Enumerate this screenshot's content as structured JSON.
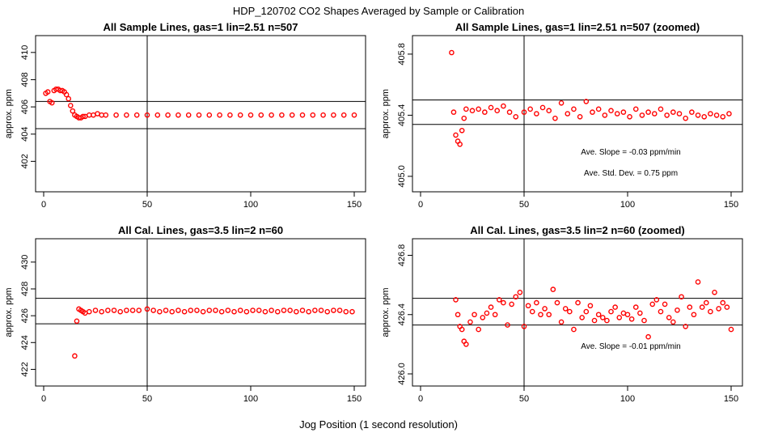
{
  "figure": {
    "title": "HDP_120702  CO2 Shapes Averaged by Sample or Calibration",
    "xlabel": "Jog Position (1 second resolution)"
  },
  "chart_data": [
    {
      "type": "scatter",
      "title": "All Sample Lines, gas=1 lin=2.51 n=507",
      "ylabel": "approx. ppm",
      "xlim": [
        0,
        150
      ],
      "ylim": [
        400,
        411
      ],
      "xticks": [
        0,
        50,
        100,
        150
      ],
      "yticks": [
        402,
        404,
        406,
        408,
        410
      ],
      "hlines": [
        406.4,
        404.4
      ],
      "vlines": [
        50
      ],
      "annotations": [],
      "series": [
        {
          "color": "#ff0000",
          "x": [
            1,
            2,
            3,
            4,
            5,
            6,
            7,
            8,
            9,
            10,
            11,
            12,
            13,
            14,
            15,
            16,
            17,
            18,
            19,
            20,
            22,
            24,
            26,
            28,
            30,
            35,
            40,
            45,
            50,
            55,
            60,
            65,
            70,
            75,
            80,
            85,
            90,
            95,
            100,
            105,
            110,
            115,
            120,
            125,
            130,
            135,
            140,
            145,
            150
          ],
          "y": [
            407.0,
            407.1,
            406.4,
            406.3,
            407.2,
            407.3,
            407.3,
            407.2,
            407.2,
            407.1,
            406.9,
            406.6,
            406.1,
            405.7,
            405.4,
            405.3,
            405.2,
            405.2,
            405.3,
            405.3,
            405.4,
            405.4,
            405.5,
            405.4,
            405.4,
            405.4,
            405.4,
            405.4,
            405.4,
            405.4,
            405.4,
            405.4,
            405.4,
            405.4,
            405.4,
            405.4,
            405.4,
            405.4,
            405.4,
            405.4,
            405.4,
            405.4,
            405.4,
            405.4,
            405.4,
            405.4,
            405.4,
            405.4,
            405.4
          ]
        }
      ]
    },
    {
      "type": "scatter",
      "title": "All Sample Lines, gas=1 lin=2.51 n=507 (zoomed)",
      "ylabel": "approx. ppm",
      "xlim": [
        0,
        150
      ],
      "ylim": [
        404.92,
        405.9
      ],
      "xticks": [
        0,
        50,
        100,
        150
      ],
      "yticks": [
        405.0,
        405.4,
        405.8
      ],
      "ytick_labels": [
        "405.0",
        "405.4",
        "405.8"
      ],
      "hlines": [
        405.5,
        405.34
      ],
      "vlines": [
        50
      ],
      "annotations": [
        "Ave. Slope =  -0.03  ppm/min",
        "Ave. Std. Dev. =  0.75  ppm"
      ],
      "series": [
        {
          "color": "#ff0000",
          "x": [
            15,
            16,
            17,
            18,
            19,
            20,
            21,
            22,
            25,
            28,
            31,
            34,
            37,
            40,
            43,
            46,
            50,
            53,
            56,
            59,
            62,
            65,
            68,
            71,
            74,
            77,
            80,
            83,
            86,
            89,
            92,
            95,
            98,
            101,
            104,
            107,
            110,
            113,
            116,
            119,
            122,
            125,
            128,
            131,
            134,
            137,
            140,
            143,
            146,
            149
          ],
          "y": [
            405.81,
            405.42,
            405.27,
            405.23,
            405.21,
            405.3,
            405.38,
            405.44,
            405.43,
            405.44,
            405.42,
            405.45,
            405.43,
            405.46,
            405.42,
            405.39,
            405.42,
            405.44,
            405.41,
            405.45,
            405.43,
            405.38,
            405.48,
            405.41,
            405.44,
            405.39,
            405.49,
            405.42,
            405.44,
            405.4,
            405.43,
            405.41,
            405.42,
            405.39,
            405.44,
            405.4,
            405.42,
            405.41,
            405.44,
            405.4,
            405.42,
            405.41,
            405.38,
            405.42,
            405.4,
            405.39,
            405.41,
            405.4,
            405.39,
            405.41
          ]
        }
      ]
    },
    {
      "type": "scatter",
      "title": "All Cal. Lines, gas=3.5 lin=2 n=60",
      "ylabel": "approx. ppm",
      "xlim": [
        0,
        150
      ],
      "ylim": [
        421,
        431.5
      ],
      "xticks": [
        0,
        50,
        100,
        150
      ],
      "yticks": [
        422,
        424,
        426,
        428,
        430
      ],
      "hlines": [
        427.3,
        425.4
      ],
      "vlines": [
        50
      ],
      "annotations": [],
      "series": [
        {
          "color": "#ff0000",
          "x": [
            15,
            16,
            17,
            18,
            19,
            20,
            22,
            25,
            28,
            31,
            34,
            37,
            40,
            43,
            46,
            50,
            53,
            56,
            59,
            62,
            65,
            68,
            71,
            74,
            77,
            80,
            83,
            86,
            89,
            92,
            95,
            98,
            101,
            104,
            107,
            110,
            113,
            116,
            119,
            122,
            125,
            128,
            131,
            134,
            137,
            140,
            143,
            146,
            149
          ],
          "y": [
            423.0,
            425.6,
            426.5,
            426.4,
            426.3,
            426.2,
            426.3,
            426.4,
            426.3,
            426.4,
            426.4,
            426.3,
            426.4,
            426.4,
            426.4,
            426.5,
            426.4,
            426.3,
            426.4,
            426.3,
            426.4,
            426.3,
            426.4,
            426.4,
            426.3,
            426.4,
            426.4,
            426.3,
            426.4,
            426.3,
            426.4,
            426.3,
            426.4,
            426.4,
            426.3,
            426.4,
            426.3,
            426.4,
            426.4,
            426.3,
            426.4,
            426.3,
            426.4,
            426.4,
            426.3,
            426.4,
            426.4,
            426.3,
            426.3
          ]
        }
      ]
    },
    {
      "type": "scatter",
      "title": "All Cal. Lines, gas=3.5 lin=2 n=60 (zoomed)",
      "ylabel": "approx. ppm",
      "xlim": [
        0,
        150
      ],
      "ylim": [
        425.94,
        426.89
      ],
      "xticks": [
        0,
        50,
        100,
        150
      ],
      "yticks": [
        426.0,
        426.4,
        426.8
      ],
      "ytick_labels": [
        "426.0",
        "426.4",
        "426.8"
      ],
      "hlines": [
        426.51,
        426.33
      ],
      "vlines": [
        50
      ],
      "annotations": [
        "Ave. Slope =  -0.01  ppm/min"
      ],
      "series": [
        {
          "color": "#ff0000",
          "x": [
            17,
            18,
            19,
            20,
            21,
            22,
            24,
            26,
            28,
            30,
            32,
            34,
            36,
            38,
            40,
            42,
            44,
            46,
            48,
            50,
            52,
            54,
            56,
            58,
            60,
            62,
            64,
            66,
            68,
            70,
            72,
            74,
            76,
            78,
            80,
            82,
            84,
            86,
            88,
            90,
            92,
            94,
            96,
            98,
            100,
            102,
            104,
            106,
            108,
            110,
            112,
            114,
            116,
            118,
            120,
            122,
            124,
            126,
            128,
            130,
            132,
            134,
            136,
            138,
            140,
            142,
            144,
            146,
            148,
            150
          ],
          "y": [
            426.5,
            426.4,
            426.32,
            426.3,
            426.22,
            426.2,
            426.35,
            426.4,
            426.3,
            426.38,
            426.41,
            426.45,
            426.4,
            426.5,
            426.48,
            426.33,
            426.47,
            426.52,
            426.55,
            426.32,
            426.46,
            426.42,
            426.48,
            426.4,
            426.44,
            426.4,
            426.57,
            426.48,
            426.35,
            426.44,
            426.42,
            426.3,
            426.48,
            426.38,
            426.42,
            426.46,
            426.36,
            426.4,
            426.38,
            426.36,
            426.42,
            426.45,
            426.38,
            426.41,
            426.4,
            426.37,
            426.45,
            426.41,
            426.36,
            426.25,
            426.47,
            426.5,
            426.42,
            426.47,
            426.38,
            426.35,
            426.43,
            426.52,
            426.32,
            426.45,
            426.4,
            426.62,
            426.45,
            426.48,
            426.42,
            426.55,
            426.44,
            426.48,
            426.45,
            426.3
          ]
        }
      ]
    }
  ]
}
